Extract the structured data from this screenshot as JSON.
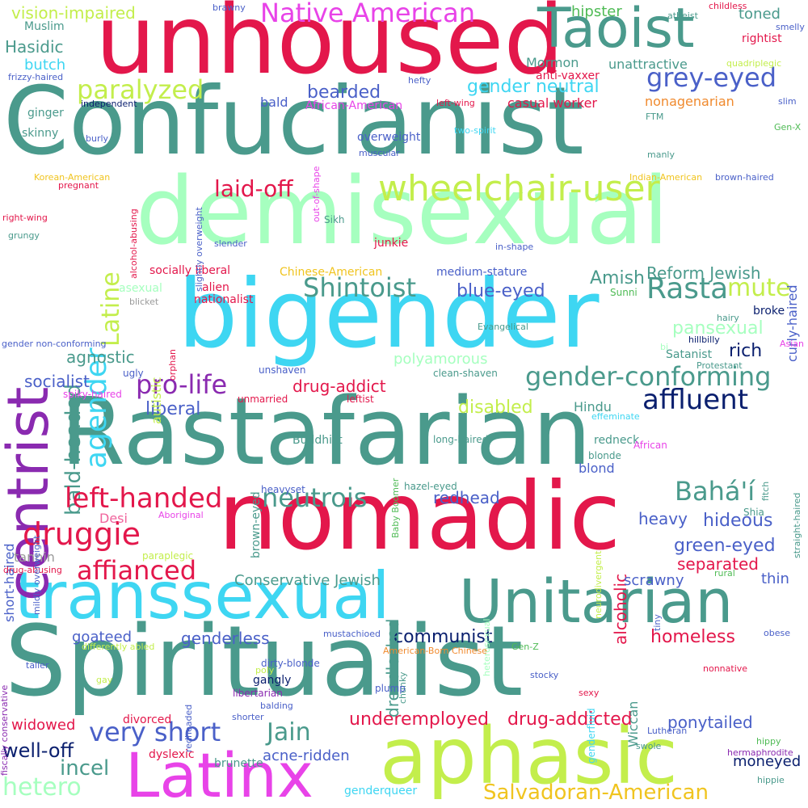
{
  "palette": {
    "crimson": "#e3174b",
    "teal": "#4a9a8c",
    "cyan": "#3ed6f2",
    "mint": "#a6ffbf",
    "lime": "#c3ee4c",
    "purple": "#8a2ab0",
    "magenta": "#e843e8",
    "navy": "#0a1f6e",
    "blue": "#4a60c8",
    "pink": "#f0649c",
    "green": "#4fbb55",
    "gold": "#f0c41f",
    "orange": "#f08a2e",
    "gray": "#9a9a9a"
  },
  "words": [
    "unhoused",
    "Confucianist",
    "demisexual",
    "bigender",
    "Rastafarian",
    "nomadic",
    "Spiritualist",
    "aphasic",
    "transsexual",
    "Unitarian",
    "Latinx",
    "Taoist",
    "centrist",
    "wheelchair-user",
    "Native American",
    "grey-eyed",
    "paralyzed",
    "laid-off",
    "Latine",
    "agender",
    "bald-headed",
    "Shintoist",
    "Rasta",
    "mute",
    "pro-life",
    "affluent",
    "gender-conforming",
    "left-handed",
    "druggie",
    "neutrois",
    "Bahá'í",
    "affianced",
    "green-eyed",
    "hideous",
    "very short",
    "Jain",
    "incel",
    "hetero",
    "well-off",
    "Salvadoran-American",
    "drug-addicted",
    "underemployed",
    "communist",
    "homeless",
    "gender neutral",
    "bearded",
    "Reform Jewish",
    "Amish",
    "blue-eyed",
    "pansexual",
    "rich",
    "liberal",
    "disabled",
    "polyamorous",
    "socialist",
    "agnostic",
    "drug-addict",
    "redhead",
    "heavy",
    "alcoholic",
    "dreadlocked",
    "separated",
    "Conservative Jewish",
    "scrawny",
    "thin",
    "ponytailed",
    "moneyed",
    "genderless",
    "goateed",
    "widowed",
    "divorced",
    "acne-ridden",
    "gangly",
    "vision-impaired",
    "hipster",
    "toned",
    "Muslim",
    "Hasidic",
    "butch",
    "Mormon",
    "unattractive",
    "casual worker",
    "nonagenarian",
    "bald",
    "ginger",
    "skinny",
    "overweight",
    "muscular",
    "Desi",
    "tannin",
    "short-haired",
    "curly-haired",
    "straight-haired",
    "blond",
    "Hindu",
    "redneck",
    "Buddhist",
    "brown-eyed",
    "autistic",
    "nationalist",
    "alien",
    "socially liberal",
    "junkie",
    "Sikh",
    "slender",
    "in-shape",
    "medium-stature",
    "broke",
    "Sunni",
    "Satanist",
    "Protestant",
    "hairy",
    "hillbilly",
    "Evangelical",
    "clean-shaven",
    "unshaven",
    "spiky-haired",
    "ugly",
    "leftist",
    "unmarried",
    "long-haired",
    "blonde",
    "effeminate",
    "African",
    "Baby Boomer",
    "hazel-eyed",
    "heavyset",
    "Shia",
    "neurodivergent",
    "paraplegic",
    "Aboriginal",
    "rural",
    "tiny",
    "heterosexual",
    "chunky",
    "obese",
    "mustachioed",
    "dirty-blonde",
    "American-Born Chinese",
    "Gen-Z",
    "differently abled",
    "genderfluid",
    "Wiccan",
    "nonnative",
    "stocky",
    "plump",
    "sexy",
    "libertarian",
    "balding",
    "shorter",
    "taller",
    "redheaded",
    "gay",
    "poly",
    "Lutheran",
    "swole",
    "hermaphrodite",
    "hippy",
    "hippie",
    "dyslexic",
    "brunette",
    "genderqueer",
    "fiscally conservative",
    "drug-abusing",
    "mildly overweight",
    "gender non-conforming",
    "orphan",
    "Asian",
    "bi",
    "fitch",
    "asexual",
    "blicket",
    "Chinese-American",
    "pregnant",
    "alcohol-abusing",
    "Korean-American",
    "right-wing",
    "grungy",
    "slightly overweight",
    "out-of-shape",
    "burly",
    "two-spirit",
    "FTM",
    "manly",
    "Indian-American",
    "brown-haired",
    "Gen-X",
    "slim",
    "independent",
    "left-wing",
    "African-American",
    "hefty",
    "anti-vaxxer",
    "frizzy-haired",
    "quadriplegic",
    "rightist",
    "smelly",
    "atheist",
    "childless",
    "brawny"
  ]
}
